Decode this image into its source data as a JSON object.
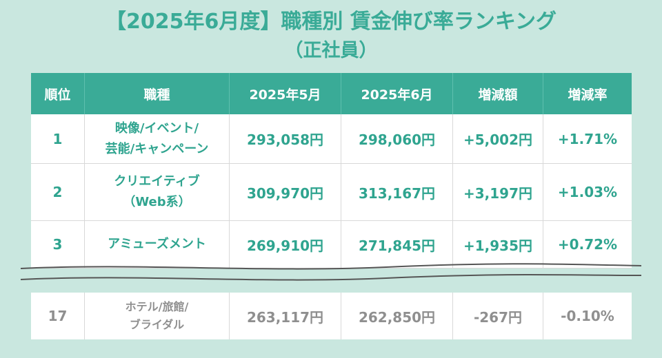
{
  "title": "【2025年6月度】職種別 賃金伸び率ランキング",
  "subtitle": "（正社員）",
  "table": {
    "headers": [
      "順位",
      "職種",
      "2025年5月",
      "2025年6月",
      "増減額",
      "増減率"
    ],
    "rows": [
      {
        "rank": "1",
        "job_line1": "映像/イベント/",
        "job_line2": "芸能/キャンペーン",
        "may": "293,058円",
        "june": "298,060円",
        "change": "+5,002円",
        "rate": "+1.71%"
      },
      {
        "rank": "2",
        "job_line1": "クリエイティブ",
        "job_line2": "（Web系）",
        "may": "309,970円",
        "june": "313,167円",
        "change": "+3,197円",
        "rate": "+1.03%"
      },
      {
        "rank": "3",
        "job_line1": "アミューズメント",
        "job_line2": "",
        "may": "269,910円",
        "june": "271,845円",
        "change": "+1,935円",
        "rate": "+0.72%"
      },
      {
        "rank": "17",
        "job_line1": "ホテル/旅館/",
        "job_line2": "ブライダル",
        "may": "263,117円",
        "june": "262,850円",
        "change": "-267円",
        "rate": "-0.10%"
      }
    ]
  },
  "colors": {
    "accent": "#3aab97",
    "background": "#c9e7df",
    "muted": "#8f8f8f"
  }
}
